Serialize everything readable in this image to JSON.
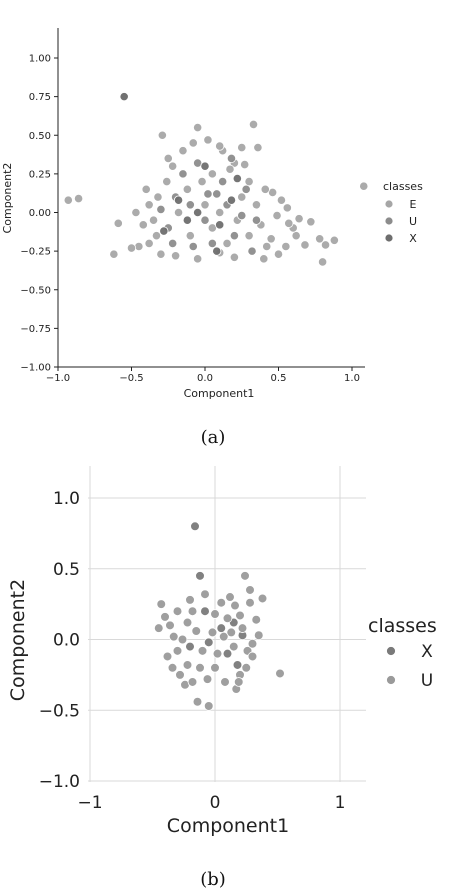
{
  "chart_data": [
    {
      "id": "a",
      "type": "scatter",
      "caption": "(a)",
      "xlabel": "Component1",
      "ylabel": "Component2",
      "xlim": [
        -1.0,
        1.15
      ],
      "ylim": [
        -1.0,
        1.2
      ],
      "xticks": [
        -1.0,
        -0.5,
        0.0,
        0.5,
        1.0
      ],
      "xtick_labels": [
        "−1.0",
        "−0.5",
        "0.0",
        "0.5",
        "1.0"
      ],
      "yticks": [
        1.0,
        0.75,
        0.5,
        0.25,
        0.0,
        -0.25,
        -0.5,
        -0.75,
        -1.0
      ],
      "ytick_labels": [
        "1.00",
        "0.75",
        "0.50",
        "0.25",
        "0.00",
        "−0.25",
        "−0.50",
        "−0.75",
        "−1.00"
      ],
      "grid": false,
      "legend": {
        "title": "classes",
        "placement": "right"
      },
      "series": [
        {
          "name": "E",
          "color": "#a6a6a6",
          "points": [
            [
              -0.55,
              0.75
            ],
            [
              -0.93,
              0.08
            ],
            [
              -0.86,
              0.09
            ],
            [
              -0.62,
              -0.27
            ],
            [
              -0.59,
              -0.07
            ],
            [
              1.08,
              0.17
            ],
            [
              0.8,
              -0.32
            ],
            [
              0.88,
              -0.18
            ],
            [
              0.72,
              -0.06
            ],
            [
              0.78,
              -0.17
            ],
            [
              0.82,
              -0.21
            ],
            [
              0.68,
              -0.21
            ],
            [
              0.62,
              -0.15
            ],
            [
              0.6,
              -0.1
            ],
            [
              0.56,
              0.03
            ],
            [
              0.64,
              -0.04
            ],
            [
              0.46,
              0.13
            ],
            [
              0.41,
              0.15
            ],
            [
              0.52,
              0.08
            ],
            [
              0.49,
              -0.02
            ],
            [
              0.57,
              -0.07
            ],
            [
              0.33,
              0.57
            ],
            [
              0.25,
              0.42
            ],
            [
              0.36,
              0.42
            ],
            [
              0.27,
              0.31
            ],
            [
              0.3,
              0.2
            ],
            [
              0.45,
              -0.17
            ],
            [
              0.55,
              -0.22
            ],
            [
              0.5,
              -0.27
            ],
            [
              0.4,
              -0.3
            ],
            [
              0.2,
              -0.29
            ],
            [
              0.1,
              -0.26
            ],
            [
              -0.05,
              -0.3
            ],
            [
              -0.2,
              -0.28
            ],
            [
              -0.3,
              -0.27
            ],
            [
              -0.38,
              -0.2
            ],
            [
              -0.45,
              -0.22
            ],
            [
              -0.5,
              -0.23
            ],
            [
              -0.42,
              -0.08
            ],
            [
              -0.47,
              0.0
            ],
            [
              -0.38,
              0.05
            ],
            [
              -0.32,
              0.1
            ],
            [
              -0.26,
              0.2
            ],
            [
              -0.22,
              0.3
            ],
            [
              -0.15,
              0.4
            ],
            [
              -0.08,
              0.45
            ],
            [
              0.02,
              0.47
            ],
            [
              0.12,
              0.4
            ],
            [
              0.2,
              0.32
            ],
            [
              -0.29,
              0.5
            ],
            [
              -0.05,
              0.55
            ],
            [
              0.1,
              0.43
            ],
            [
              0.17,
              0.28
            ],
            [
              -0.25,
              0.35
            ],
            [
              -0.33,
              -0.15
            ],
            [
              0.15,
              -0.2
            ],
            [
              0.05,
              -0.1
            ],
            [
              -0.1,
              -0.15
            ],
            [
              -0.18,
              0.0
            ],
            [
              0.0,
              0.05
            ],
            [
              0.1,
              0.0
            ],
            [
              0.22,
              -0.05
            ],
            [
              0.3,
              -0.15
            ],
            [
              0.38,
              -0.08
            ],
            [
              0.35,
              0.05
            ],
            [
              0.25,
              0.1
            ],
            [
              -0.12,
              0.15
            ],
            [
              -0.02,
              0.2
            ],
            [
              0.05,
              0.25
            ],
            [
              -0.4,
              0.15
            ],
            [
              -0.35,
              -0.05
            ],
            [
              0.42,
              -0.22
            ]
          ]
        },
        {
          "name": "U",
          "color": "#8c8c8c",
          "points": [
            [
              -0.2,
              0.1
            ],
            [
              -0.1,
              0.05
            ],
            [
              0.0,
              -0.05
            ],
            [
              0.08,
              0.12
            ],
            [
              0.15,
              0.05
            ],
            [
              -0.25,
              -0.1
            ],
            [
              0.05,
              -0.2
            ],
            [
              0.2,
              -0.15
            ],
            [
              -0.15,
              0.25
            ],
            [
              0.12,
              0.2
            ],
            [
              -0.3,
              0.02
            ],
            [
              0.25,
              -0.02
            ],
            [
              -0.05,
              0.32
            ],
            [
              0.18,
              0.35
            ],
            [
              0.32,
              -0.25
            ],
            [
              0.28,
              0.15
            ],
            [
              -0.08,
              -0.22
            ],
            [
              0.02,
              0.12
            ],
            [
              0.35,
              -0.05
            ],
            [
              -0.22,
              -0.2
            ]
          ]
        },
        {
          "name": "X",
          "color": "#6e6e6e",
          "points": [
            [
              -0.55,
              0.75
            ],
            [
              -0.18,
              0.08
            ],
            [
              0.1,
              -0.08
            ],
            [
              -0.05,
              0.0
            ],
            [
              0.18,
              0.08
            ],
            [
              -0.12,
              -0.05
            ],
            [
              0.0,
              0.3
            ],
            [
              0.22,
              0.22
            ],
            [
              -0.28,
              -0.12
            ],
            [
              0.08,
              -0.25
            ]
          ]
        }
      ]
    },
    {
      "id": "b",
      "type": "scatter",
      "caption": "(b)",
      "xlabel": "Component1",
      "ylabel": "Component2",
      "xlim": [
        -1.0,
        1.2
      ],
      "ylim": [
        -1.0,
        1.2
      ],
      "xticks": [
        -1,
        0,
        1
      ],
      "xtick_labels": [
        "−1",
        "0",
        "1"
      ],
      "yticks": [
        1.0,
        0.5,
        0.0,
        -0.5,
        -1.0
      ],
      "ytick_labels": [
        "1.0",
        "0.5",
        "0.0",
        "−0.5",
        "−1.0"
      ],
      "grid": true,
      "legend": {
        "title": "classes",
        "placement": "right"
      },
      "series": [
        {
          "name": "X",
          "color": "#7a7a7a",
          "points": [
            [
              -0.16,
              0.8
            ],
            [
              -0.12,
              0.45
            ],
            [
              0.05,
              0.08
            ],
            [
              -0.05,
              -0.02
            ],
            [
              0.15,
              0.12
            ],
            [
              -0.2,
              -0.05
            ],
            [
              0.1,
              -0.1
            ],
            [
              0.22,
              0.03
            ],
            [
              -0.08,
              0.2
            ],
            [
              0.18,
              -0.18
            ]
          ]
        },
        {
          "name": "U",
          "color": "#9a9a9a",
          "points": [
            [
              -0.43,
              0.25
            ],
            [
              -0.4,
              0.16
            ],
            [
              -0.45,
              0.08
            ],
            [
              -0.36,
              0.1
            ],
            [
              -0.33,
              0.02
            ],
            [
              -0.3,
              -0.08
            ],
            [
              -0.38,
              -0.12
            ],
            [
              -0.34,
              -0.2
            ],
            [
              -0.28,
              -0.25
            ],
            [
              -0.24,
              -0.32
            ],
            [
              -0.18,
              -0.3
            ],
            [
              -0.22,
              -0.18
            ],
            [
              -0.26,
              0.0
            ],
            [
              -0.22,
              0.12
            ],
            [
              -0.18,
              0.2
            ],
            [
              -0.15,
              0.06
            ],
            [
              -0.1,
              -0.08
            ],
            [
              -0.12,
              -0.2
            ],
            [
              -0.06,
              -0.28
            ],
            [
              -0.14,
              -0.44
            ],
            [
              -0.05,
              -0.47
            ],
            [
              0.0,
              -0.2
            ],
            [
              0.02,
              -0.1
            ],
            [
              0.0,
              0.18
            ],
            [
              0.05,
              0.26
            ],
            [
              0.08,
              -0.3
            ],
            [
              0.1,
              0.15
            ],
            [
              0.12,
              0.3
            ],
            [
              0.16,
              0.24
            ],
            [
              0.2,
              0.17
            ],
            [
              0.22,
              0.08
            ],
            [
              0.26,
              -0.08
            ],
            [
              0.2,
              -0.25
            ],
            [
              0.17,
              -0.35
            ],
            [
              0.19,
              -0.3
            ],
            [
              0.25,
              -0.2
            ],
            [
              0.3,
              -0.12
            ],
            [
              0.35,
              0.03
            ],
            [
              0.33,
              0.14
            ],
            [
              0.38,
              0.29
            ],
            [
              0.24,
              0.45
            ],
            [
              0.28,
              0.26
            ],
            [
              0.3,
              -0.03
            ],
            [
              0.52,
              -0.24
            ],
            [
              0.13,
              0.05
            ],
            [
              -0.02,
              0.05
            ],
            [
              0.07,
              0.02
            ],
            [
              -0.08,
              0.32
            ],
            [
              0.15,
              -0.05
            ],
            [
              0.28,
              0.35
            ],
            [
              -0.3,
              0.2
            ],
            [
              -0.2,
              0.28
            ]
          ]
        }
      ]
    }
  ]
}
